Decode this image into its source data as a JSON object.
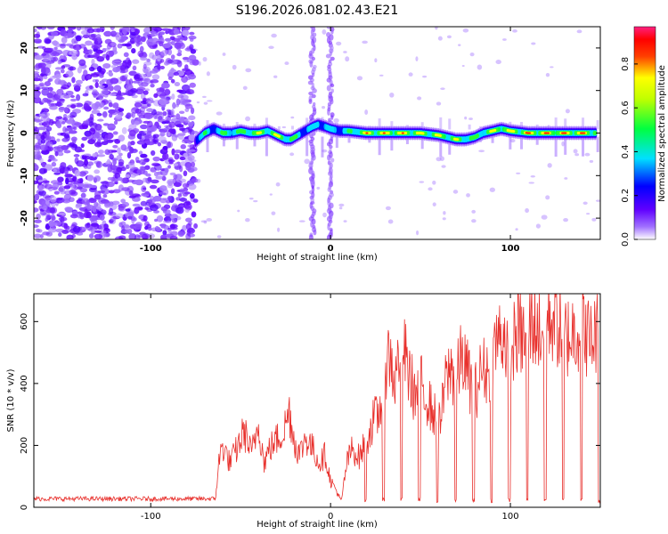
{
  "title": "S196.2026.081.02.43.E21",
  "chart_data": [
    {
      "type": "heatmap",
      "xlabel": "Height of straight line (km)",
      "ylabel": "Frequency (Hz)",
      "xlim": [
        -165,
        150
      ],
      "ylim": [
        -25,
        25
      ],
      "xticks": [
        -100,
        0,
        100
      ],
      "yticks": [
        -20,
        -10,
        0,
        10,
        20
      ],
      "colorbar": {
        "label": "Normalized spectral amplitude",
        "range": [
          0,
          0.97
        ],
        "ticks": [
          0,
          0.2,
          0.4,
          0.6,
          0.8
        ],
        "colormap": [
          "#ffffff",
          "#7f00ff",
          "#0000ff",
          "#00ffff",
          "#00ff00",
          "#ffff00",
          "#ff0000",
          "#ff00ff"
        ]
      },
      "noise_region_x": [
        -165,
        -75
      ],
      "vertical_artifacts_x": [
        -10,
        0
      ],
      "ridge": {
        "x": [
          -75,
          -70,
          -65,
          -60,
          -55,
          -50,
          -45,
          -40,
          -35,
          -30,
          -25,
          -22,
          -18,
          -14,
          -10,
          -7,
          -3,
          0,
          5,
          10,
          20,
          30,
          40,
          50,
          60,
          65,
          70,
          75,
          80,
          85,
          90,
          95,
          100,
          110,
          120,
          130,
          140,
          148
        ],
        "freq": [
          -2,
          0,
          1,
          0,
          0,
          0.5,
          0,
          0,
          0.5,
          -0.5,
          -1.5,
          -1.5,
          -0.5,
          0.5,
          1.5,
          2,
          1.5,
          1,
          0.5,
          0.5,
          0,
          0,
          0,
          0,
          -0.5,
          -1,
          -1.5,
          -1.5,
          -1,
          0,
          0.5,
          1,
          0.5,
          0,
          0,
          0,
          0,
          0
        ],
        "amplitude": [
          0.35,
          0.5,
          0.4,
          0.55,
          0.6,
          0.6,
          0.7,
          0.75,
          0.7,
          0.75,
          0.8,
          0.6,
          0.5,
          0.45,
          0.4,
          0.5,
          0.45,
          0.4,
          0.45,
          0.5,
          0.85,
          0.85,
          0.85,
          0.8,
          0.8,
          0.75,
          0.7,
          0.65,
          0.6,
          0.65,
          0.8,
          0.85,
          0.8,
          0.9,
          0.9,
          0.9,
          0.9,
          0.85
        ]
      }
    },
    {
      "type": "line",
      "xlabel": "Height of straight line (km)",
      "ylabel": "SNR (10 * v/v)",
      "xlim": [
        -165,
        150
      ],
      "ylim": [
        0,
        690
      ],
      "xticks": [
        -100,
        0,
        100
      ],
      "yticks": [
        0,
        200,
        400,
        600
      ],
      "series": [
        {
          "color": "#e8302c",
          "x": [
            -165,
            -150,
            -140,
            -130,
            -120,
            -110,
            -100,
            -90,
            -80,
            -70,
            -64,
            -62,
            -60,
            -56,
            -52,
            -48,
            -44,
            -40,
            -37,
            -34,
            -30,
            -26,
            -23,
            -20,
            -17,
            -14,
            -10,
            -6,
            -3,
            0,
            3,
            6,
            9,
            12,
            16,
            20,
            24,
            27,
            30,
            33,
            36,
            39,
            43,
            47,
            51,
            55,
            58,
            61,
            64,
            67,
            70,
            73,
            77,
            80,
            84,
            88,
            92,
            96,
            100,
            104,
            108,
            112,
            116,
            120,
            124,
            128,
            132,
            136,
            140,
            144,
            148,
            150
          ],
          "values": [
            25,
            22,
            26,
            24,
            28,
            23,
            27,
            25,
            22,
            28,
            30,
            160,
            210,
            150,
            200,
            260,
            180,
            290,
            150,
            200,
            230,
            260,
            330,
            220,
            180,
            240,
            200,
            150,
            180,
            90,
            60,
            20,
            150,
            200,
            170,
            230,
            300,
            310,
            470,
            520,
            420,
            580,
            470,
            380,
            420,
            350,
            310,
            280,
            430,
            470,
            430,
            520,
            440,
            380,
            470,
            460,
            560,
            600,
            520,
            600,
            570,
            640,
            600,
            640,
            650,
            610,
            580,
            600,
            640,
            560,
            600,
            520
          ]
        }
      ]
    }
  ]
}
